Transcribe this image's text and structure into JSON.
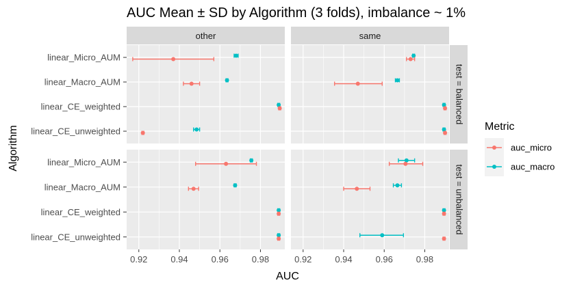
{
  "chart_data": {
    "type": "scatter",
    "subtype": "dot-errorbar-facet",
    "title": "AUC Mean ± SD by Algorithm (3 folds), imbalance ~ 1%",
    "xlabel": "AUC",
    "ylabel": "Algorithm",
    "xlim": [
      0.914,
      0.992
    ],
    "x_ticks": [
      0.92,
      0.94,
      0.96,
      0.98
    ],
    "x_tick_labels": [
      "0.92",
      "0.94",
      "0.96",
      "0.98"
    ],
    "categories": [
      "linear_Micro_AUM",
      "linear_Macro_AUM",
      "linear_CE_weighted",
      "linear_CE_unweighted"
    ],
    "facet_columns": [
      "other",
      "same"
    ],
    "facet_rows": [
      "test = balanced",
      "test = unbalanced"
    ],
    "legend": {
      "title": "Metric",
      "placement": "right",
      "entries": [
        {
          "name": "auc_micro",
          "color": "#F8766D"
        },
        {
          "name": "auc_macro",
          "color": "#00BFC4"
        }
      ]
    },
    "grid": true,
    "panels": [
      {
        "col": "other",
        "row": "test = balanced",
        "points": [
          {
            "algorithm": "linear_Micro_AUM",
            "metric": "auc_macro",
            "mean": 0.968,
            "lo": 0.967,
            "hi": 0.969
          },
          {
            "algorithm": "linear_Micro_AUM",
            "metric": "auc_micro",
            "mean": 0.937,
            "lo": 0.917,
            "hi": 0.957
          },
          {
            "algorithm": "linear_Macro_AUM",
            "metric": "auc_macro",
            "mean": 0.9635,
            "lo": 0.963,
            "hi": 0.964
          },
          {
            "algorithm": "linear_Macro_AUM",
            "metric": "auc_micro",
            "mean": 0.946,
            "lo": 0.942,
            "hi": 0.95
          },
          {
            "algorithm": "linear_CE_weighted",
            "metric": "auc_macro",
            "mean": 0.989,
            "lo": 0.9885,
            "hi": 0.9895
          },
          {
            "algorithm": "linear_CE_weighted",
            "metric": "auc_micro",
            "mean": 0.9895,
            "lo": 0.989,
            "hi": 0.99
          },
          {
            "algorithm": "linear_CE_unweighted",
            "metric": "auc_macro",
            "mean": 0.9485,
            "lo": 0.947,
            "hi": 0.95
          },
          {
            "algorithm": "linear_CE_unweighted",
            "metric": "auc_micro",
            "mean": 0.922,
            "lo": 0.9215,
            "hi": 0.9225
          }
        ]
      },
      {
        "col": "same",
        "row": "test = balanced",
        "points": [
          {
            "algorithm": "linear_Micro_AUM",
            "metric": "auc_macro",
            "mean": 0.9745,
            "lo": 0.974,
            "hi": 0.975
          },
          {
            "algorithm": "linear_Micro_AUM",
            "metric": "auc_micro",
            "mean": 0.973,
            "lo": 0.971,
            "hi": 0.975
          },
          {
            "algorithm": "linear_Macro_AUM",
            "metric": "auc_macro",
            "mean": 0.9665,
            "lo": 0.9655,
            "hi": 0.9675
          },
          {
            "algorithm": "linear_Macro_AUM",
            "metric": "auc_micro",
            "mean": 0.947,
            "lo": 0.9355,
            "hi": 0.959
          },
          {
            "algorithm": "linear_CE_weighted",
            "metric": "auc_macro",
            "mean": 0.9895,
            "lo": 0.989,
            "hi": 0.99
          },
          {
            "algorithm": "linear_CE_weighted",
            "metric": "auc_micro",
            "mean": 0.99,
            "lo": 0.9895,
            "hi": 0.9905
          },
          {
            "algorithm": "linear_CE_unweighted",
            "metric": "auc_macro",
            "mean": 0.9895,
            "lo": 0.989,
            "hi": 0.99
          },
          {
            "algorithm": "linear_CE_unweighted",
            "metric": "auc_micro",
            "mean": 0.99,
            "lo": 0.9895,
            "hi": 0.9905
          }
        ]
      },
      {
        "col": "other",
        "row": "test = unbalanced",
        "points": [
          {
            "algorithm": "linear_Micro_AUM",
            "metric": "auc_macro",
            "mean": 0.9755,
            "lo": 0.975,
            "hi": 0.976
          },
          {
            "algorithm": "linear_Micro_AUM",
            "metric": "auc_micro",
            "mean": 0.963,
            "lo": 0.948,
            "hi": 0.978
          },
          {
            "algorithm": "linear_Macro_AUM",
            "metric": "auc_macro",
            "mean": 0.9675,
            "lo": 0.967,
            "hi": 0.968
          },
          {
            "algorithm": "linear_Macro_AUM",
            "metric": "auc_micro",
            "mean": 0.947,
            "lo": 0.9445,
            "hi": 0.9495
          },
          {
            "algorithm": "linear_CE_weighted",
            "metric": "auc_macro",
            "mean": 0.989,
            "lo": 0.9885,
            "hi": 0.9895
          },
          {
            "algorithm": "linear_CE_weighted",
            "metric": "auc_micro",
            "mean": 0.989,
            "lo": 0.9885,
            "hi": 0.9895
          },
          {
            "algorithm": "linear_CE_unweighted",
            "metric": "auc_macro",
            "mean": 0.989,
            "lo": 0.9885,
            "hi": 0.9895
          },
          {
            "algorithm": "linear_CE_unweighted",
            "metric": "auc_micro",
            "mean": 0.989,
            "lo": 0.9885,
            "hi": 0.9895
          }
        ]
      },
      {
        "col": "same",
        "row": "test = unbalanced",
        "points": [
          {
            "algorithm": "linear_Micro_AUM",
            "metric": "auc_macro",
            "mean": 0.971,
            "lo": 0.967,
            "hi": 0.975
          },
          {
            "algorithm": "linear_Micro_AUM",
            "metric": "auc_micro",
            "mean": 0.9705,
            "lo": 0.9625,
            "hi": 0.979
          },
          {
            "algorithm": "linear_Macro_AUM",
            "metric": "auc_macro",
            "mean": 0.9665,
            "lo": 0.9645,
            "hi": 0.9685
          },
          {
            "algorithm": "linear_Macro_AUM",
            "metric": "auc_micro",
            "mean": 0.9465,
            "lo": 0.94,
            "hi": 0.953
          },
          {
            "algorithm": "linear_CE_weighted",
            "metric": "auc_macro",
            "mean": 0.9895,
            "lo": 0.989,
            "hi": 0.99
          },
          {
            "algorithm": "linear_CE_weighted",
            "metric": "auc_micro",
            "mean": 0.9895,
            "lo": 0.989,
            "hi": 0.99
          },
          {
            "algorithm": "linear_CE_unweighted",
            "metric": "auc_macro",
            "mean": 0.959,
            "lo": 0.948,
            "hi": 0.9695
          },
          {
            "algorithm": "linear_CE_unweighted",
            "metric": "auc_micro",
            "mean": 0.9895,
            "lo": 0.989,
            "hi": 0.99
          }
        ]
      }
    ]
  }
}
